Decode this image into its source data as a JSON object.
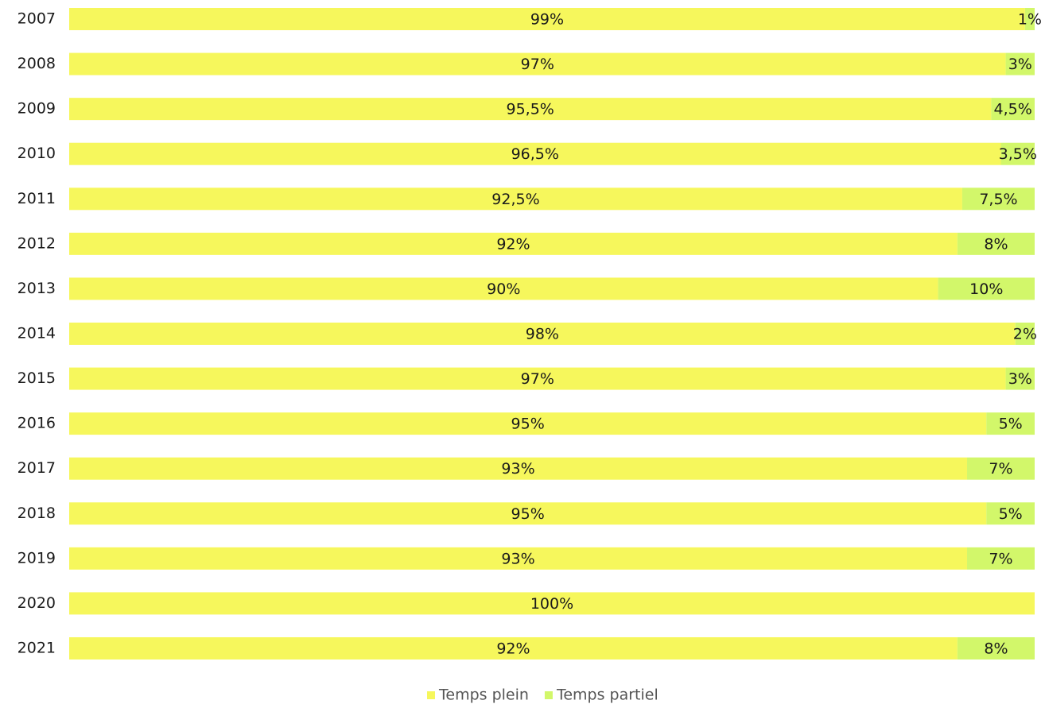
{
  "chart_data": {
    "type": "stacked-bar-horizontal",
    "categories": [
      "2007",
      "2008",
      "2009",
      "2010",
      "2011",
      "2012",
      "2013",
      "2014",
      "2015",
      "2016",
      "2017",
      "2018",
      "2019",
      "2020",
      "2021"
    ],
    "xlim": [
      0,
      100
    ],
    "series": [
      {
        "name": "Temps plein",
        "color": "#f6f75c",
        "values": [
          99,
          97,
          95.5,
          96.5,
          92.5,
          92,
          90,
          98,
          97,
          95,
          93,
          95,
          93,
          100,
          92
        ],
        "value_labels": [
          "99%",
          "97%",
          "95,5%",
          "96,5%",
          "92,5%",
          "92%",
          "90%",
          "98%",
          "97%",
          "95%",
          "93%",
          "95%",
          "93%",
          "100%",
          "92%"
        ]
      },
      {
        "name": "Temps partiel",
        "color": "#d2f76a",
        "values": [
          1,
          3,
          4.5,
          3.5,
          7.5,
          8,
          10,
          2,
          3,
          5,
          7,
          5,
          7,
          0,
          8
        ],
        "value_labels": [
          "1%",
          "3%",
          "4,5%",
          "3,5%",
          "7,5%",
          "8%",
          "10%",
          "2%",
          "3%",
          "5%",
          "7%",
          "5%",
          "7%",
          null,
          "8%"
        ]
      }
    ],
    "legend": "bottom"
  }
}
